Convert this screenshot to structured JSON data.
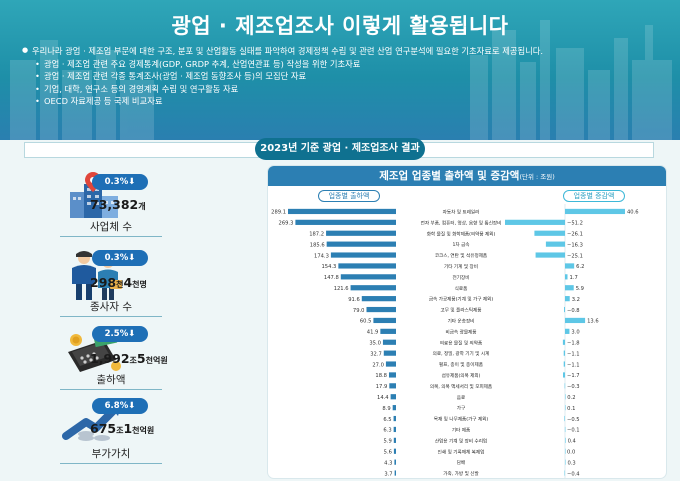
{
  "header": {
    "title": "광업 · 제조업조사 이렇게 활용됩니다",
    "intro": "우리나라 광업 · 제조업 부문에 대한 구조, 분포 및 산업활동 실태를 파악하여 경제정책 수립 및 관련 산업 연구분석에 필요한 기초자료로 제공됩니다.",
    "uses": [
      "광업 · 제조업 관련 주요 경제통계(GDP, GRDP 추계, 산업연관표 등) 작성을 위한 기초자료",
      "광업 · 제조업 관련 각종 통계조사(광업 · 제조업 동향조사 등)의 모집단 자료",
      "기업, 대학, 연구소 등의 경영계획 수립 및 연구활동 자료",
      "OECD 자료제공 등 국제 비교자료"
    ]
  },
  "section_title": "2023년 기준 광업 · 제조업조사 결과",
  "stats": [
    {
      "badge": "0.3%⬇",
      "value": "73,382",
      "unit": "개",
      "label": "사업체 수",
      "icon": "buildings-location-icon"
    },
    {
      "badge": "0.3%⬇",
      "value": "298",
      "value2": "4",
      "unit": "천",
      "unit2": "천명",
      "label": "종사자 수",
      "icon": "workers-icon"
    },
    {
      "badge": "2.5%⬇",
      "value": "1,992",
      "value2": "5",
      "unit": "조",
      "unit2": "천억원",
      "label": "출하액",
      "icon": "cash-machine-icon"
    },
    {
      "badge": "6.8%⬇",
      "value": "675",
      "value2": "1",
      "unit": "조",
      "unit2": "천억원",
      "label": "부가가치",
      "icon": "rising-chart-icon"
    }
  ],
  "colors": {
    "header": "#1e8fa8",
    "section": "#0f7190",
    "badge": "#1e6fb6",
    "bar_left": "#2c7fb3",
    "bar_right": "#5ec7e6"
  },
  "chart_data": {
    "type": "bar",
    "title": "제조업 업종별 출하액 및 증감액",
    "unit": "(단위 : 조원)",
    "series": [
      {
        "name": "업종별 출하액",
        "values": [
          289.1,
          269.3,
          187.2,
          185.6,
          174.3,
          154.3,
          147.8,
          121.6,
          91.6,
          79.0,
          60.5,
          41.9,
          35.0,
          32.7,
          27.0,
          18.8,
          17.9,
          14.4,
          8.9,
          6.5,
          6.3,
          5.9,
          5.6,
          4.3,
          3.7
        ]
      },
      {
        "name": "업종별 증감액",
        "values": [
          40.6,
          -51.2,
          -26.1,
          -16.3,
          -25.1,
          6.2,
          1.7,
          5.9,
          3.2,
          -0.8,
          13.6,
          3.0,
          -1.8,
          -1.1,
          -1.1,
          -1.7,
          -0.3,
          0.2,
          0.1,
          -0.5,
          -0.1,
          0.4,
          0.0,
          0.3,
          -0.4
        ]
      }
    ],
    "categories": [
      "자동차 및 트레일러",
      "전자 부품, 컴퓨터, 영상, 음향 및 통신장비",
      "화학 물질 및 화학제품(의약품 제외)",
      "1차 금속",
      "코크스, 연탄 및 석유정제품",
      "기타 기계 및 장비",
      "전기장비",
      "식료품",
      "금속 가공제품(기계 및 가구 제외)",
      "고무 및 플라스틱제품",
      "기타 운송장비",
      "비금속 광물제품",
      "의료용 물질 및 의약품",
      "의료, 정밀, 광학 기기 및 시계",
      "펄프, 종이 및 종이제품",
      "섬유제품(의복 제외)",
      "의복, 의복 액세서리 및 모피제품",
      "음료",
      "가구",
      "목재 및 나무제품(가구 제외)",
      "기타 제품",
      "산업용 기계 및 장비 수리업",
      "인쇄 및 기록매체 복제업",
      "담배",
      "가죽, 가방 및 신발"
    ],
    "value_labels_left": [
      "289.1",
      "269.3",
      "187.2",
      "185.6",
      "174.3",
      "154.3",
      "147.8",
      "121.6",
      "91.6",
      "79.0",
      "60.5",
      "41.9",
      "35.0",
      "32.7",
      "27.0",
      "18.8",
      "17.9",
      "14.4",
      "8.9",
      "6.5",
      "6.3",
      "5.9",
      "5.6",
      "4.3",
      "3.7"
    ],
    "value_labels_right": [
      "40.6",
      "−51.2",
      "−26.1",
      "−16.3",
      "−25.1",
      "6.2",
      "1.7",
      "5.9",
      "3.2",
      "−0.8",
      "13.6",
      "3.0",
      "−1.8",
      "−1.1",
      "−1.1",
      "−1.7",
      "−0.3",
      "0.2",
      "0.1",
      "−0.5",
      "−0.1",
      "0.4",
      "0.0",
      "0.3",
      "−0.4"
    ]
  }
}
